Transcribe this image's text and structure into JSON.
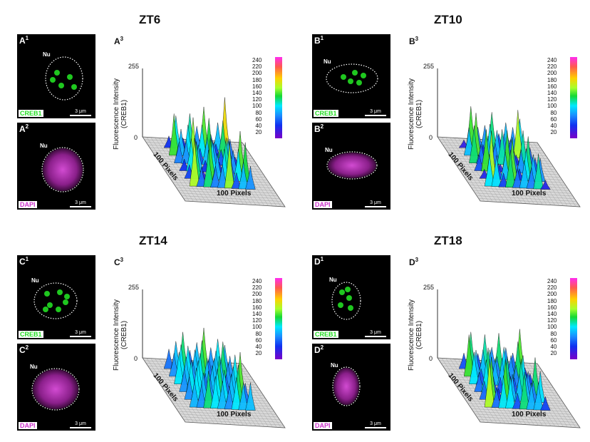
{
  "panels": [
    {
      "title": "ZT6",
      "img1": "A",
      "img2": "A",
      "chart": "A",
      "sup1": "1",
      "sup2": "2",
      "sup3": "3"
    },
    {
      "title": "ZT10",
      "img1": "B",
      "img2": "B",
      "chart": "B",
      "sup1": "1",
      "sup2": "2",
      "sup3": "3"
    },
    {
      "title": "ZT14",
      "img1": "C",
      "img2": "C",
      "chart": "C",
      "sup1": "1",
      "sup2": "2",
      "sup3": "3"
    },
    {
      "title": "ZT18",
      "img1": "D",
      "img2": "D",
      "chart": "D",
      "sup1": "1",
      "sup2": "2",
      "sup3": "3"
    }
  ],
  "labels": {
    "nucleus": "Nu",
    "creb1": "CREB1",
    "dapi": "DAPI",
    "scalebar": "3 μm",
    "ylabel_line1": "Fluorescence Intensity",
    "ylabel_line2": "(CREB1)",
    "ymax": "255",
    "ymin": "0",
    "xaxis": "100 Pixels",
    "zaxis": "100 Pixels"
  },
  "colorbar_ticks": [
    "240",
    "220",
    "200",
    "180",
    "160",
    "140",
    "120",
    "100",
    "80",
    "60",
    "40",
    "20"
  ],
  "colors": {
    "creb1": "#22dd22",
    "dapi": "#cc33cc",
    "background": "#000000"
  },
  "chart_data": [
    {
      "type": "surface",
      "panel": "A3",
      "group": "ZT6",
      "zlim": [
        0,
        255
      ],
      "xlabel": "100 Pixels",
      "ylabel": "100 Pixels",
      "zlabel": "Fluorescence Intensity (CREB1)",
      "colorbar": [
        20,
        240
      ]
    },
    {
      "type": "surface",
      "panel": "B3",
      "group": "ZT10",
      "zlim": [
        0,
        255
      ],
      "xlabel": "100 Pixels",
      "ylabel": "100 Pixels",
      "zlabel": "Fluorescence Intensity (CREB1)",
      "colorbar": [
        20,
        240
      ]
    },
    {
      "type": "surface",
      "panel": "C3",
      "group": "ZT14",
      "zlim": [
        0,
        255
      ],
      "xlabel": "100 Pixels",
      "ylabel": "100 Pixels",
      "zlabel": "Fluorescence Intensity (CREB1)",
      "colorbar": [
        20,
        240
      ]
    },
    {
      "type": "surface",
      "panel": "D3",
      "group": "ZT18",
      "zlim": [
        0,
        255
      ],
      "xlabel": "100 Pixels",
      "ylabel": "100 Pixels",
      "zlabel": "Fluorescence Intensity (CREB1)",
      "colorbar": [
        20,
        240
      ]
    }
  ]
}
